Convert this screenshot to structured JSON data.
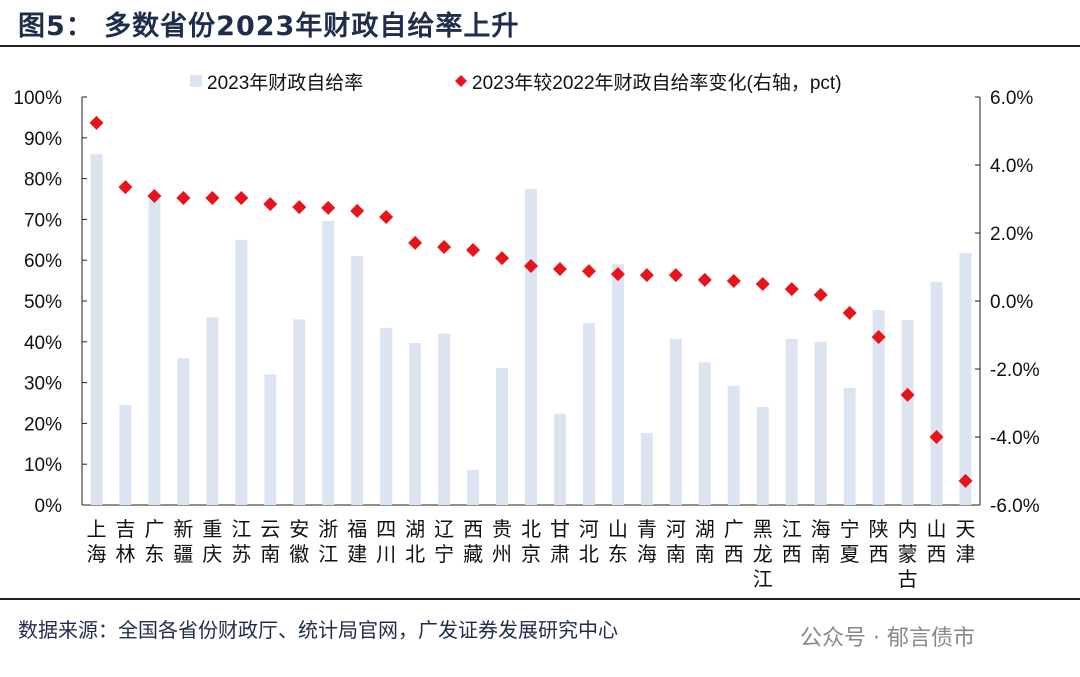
{
  "title": "图5：  多数省份2023年财政自给率上升",
  "source": "数据来源：全国各省份财政厅、统计局官网，广发证券发展研究中心",
  "watermark": "公众号 · 郁言债市",
  "chart_data": {
    "type": "bar+scatter",
    "categories": [
      "上海",
      "吉林",
      "广东",
      "新疆",
      "重庆",
      "江苏",
      "云南",
      "安徽",
      "浙江",
      "福建",
      "四川",
      "湖北",
      "辽宁",
      "西藏",
      "贵州",
      "北京",
      "甘肃",
      "河北",
      "山东",
      "青海",
      "河南",
      "湖南",
      "广西",
      "黑龙江",
      "江西",
      "海南",
      "宁夏",
      "陕西",
      "内蒙古",
      "山西",
      "天津"
    ],
    "series": [
      {
        "name": "2023年财政自给率",
        "axis": "left",
        "type": "bar",
        "color": "#dbe4f0",
        "values": [
          86,
          24.5,
          75,
          36,
          46,
          65,
          32,
          45.5,
          69.6,
          61,
          43.4,
          39.7,
          42,
          8.6,
          33.6,
          77.5,
          22.3,
          44.6,
          59,
          17.6,
          40.7,
          35,
          29.2,
          24,
          40.7,
          40,
          28.7,
          47.8,
          45.3,
          54.7,
          61.8
        ]
      },
      {
        "name": "2023年较2022年财政自给率变化(右轴，pct)",
        "axis": "right",
        "type": "scatter",
        "marker": "diamond",
        "color": "#e8141b",
        "values": [
          5.24,
          3.35,
          3.09,
          3.03,
          3.03,
          3.03,
          2.85,
          2.76,
          2.74,
          2.65,
          2.47,
          1.71,
          1.59,
          1.5,
          1.26,
          1.03,
          0.94,
          0.88,
          0.79,
          0.76,
          0.76,
          0.62,
          0.59,
          0.5,
          0.35,
          0.18,
          -0.35,
          -1.06,
          -2.76,
          -4.0,
          -5.29
        ]
      }
    ],
    "left_axis": {
      "ylim": [
        0,
        100
      ],
      "ticks": [
        "0%",
        "10%",
        "20%",
        "30%",
        "40%",
        "50%",
        "60%",
        "70%",
        "80%",
        "90%",
        "100%"
      ]
    },
    "right_axis": {
      "ylim": [
        -6,
        6
      ],
      "ticks": [
        "-6.0%",
        "-4.0%",
        "-2.0%",
        "0.0%",
        "2.0%",
        "4.0%",
        "6.0%"
      ]
    },
    "legend": "top",
    "grid": false
  }
}
